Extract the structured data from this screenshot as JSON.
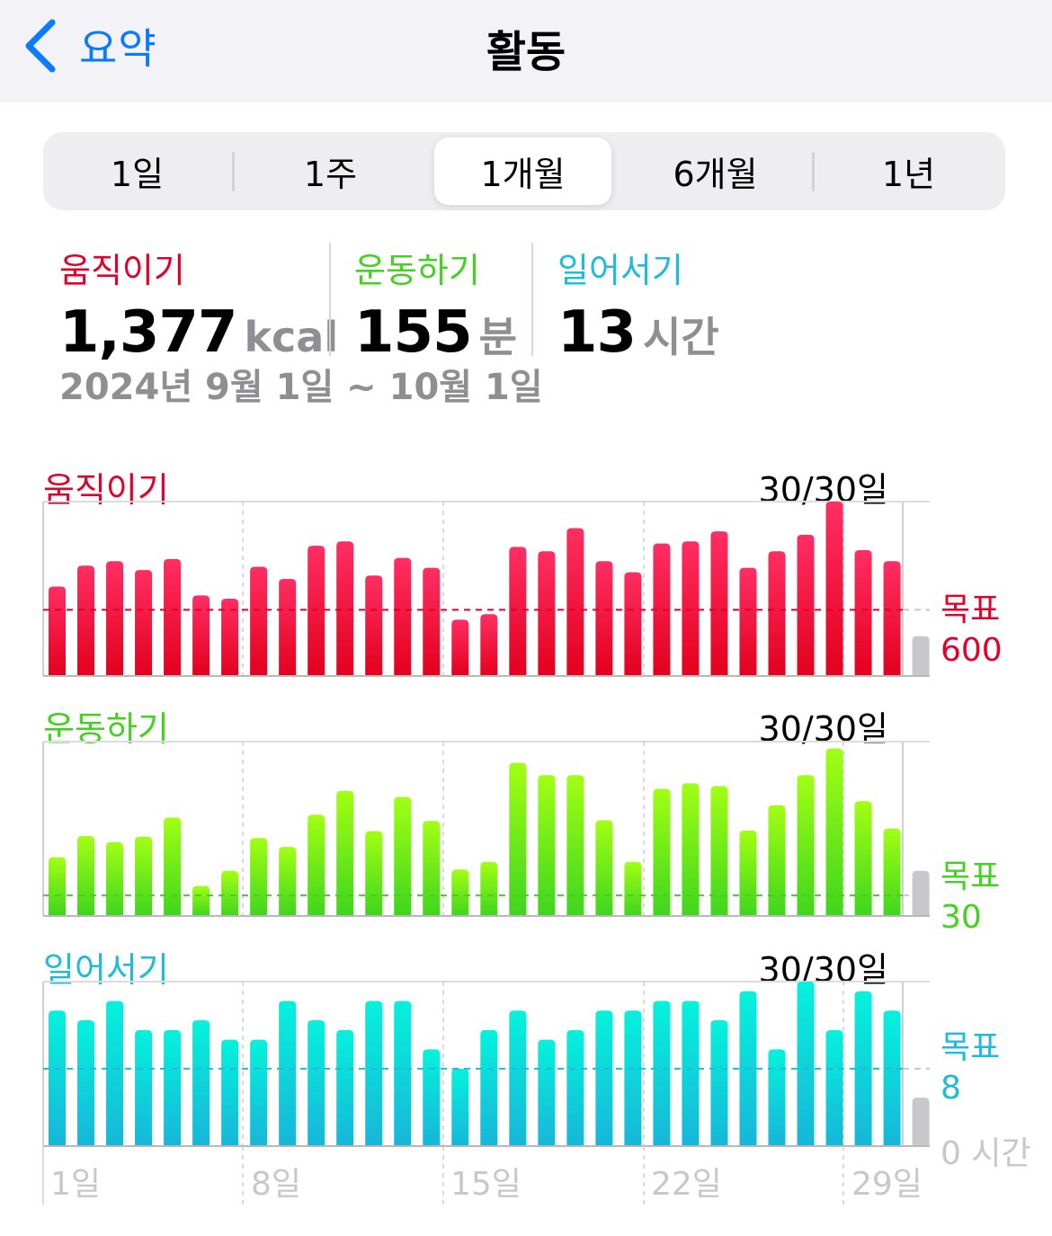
{
  "nav": {
    "back_label": "요약",
    "title": "활동"
  },
  "segments": [
    {
      "label": "1일",
      "selected": false
    },
    {
      "label": "1주",
      "selected": false
    },
    {
      "label": "1개월",
      "selected": true
    },
    {
      "label": "6개월",
      "selected": false
    },
    {
      "label": "1년",
      "selected": false
    }
  ],
  "summary": {
    "move": {
      "label": "움직이기",
      "value": "1,377",
      "unit": "kcal",
      "color": "#e3002a"
    },
    "exercise": {
      "label": "운동하기",
      "value": "155",
      "unit": "분",
      "color": "#44d11f"
    },
    "stand": {
      "label": "일어서기",
      "value": "13",
      "unit": "시간",
      "color": "#1ebcd8"
    },
    "date_range": "2024년 9월 1일 ~ 10월 1일"
  },
  "colors": {
    "move": "#e3002a",
    "exercise": "#44d11f",
    "stand": "#1ebcd8",
    "accent": "#0a7aff",
    "inactive_bar": "#c7c7cc"
  },
  "chart_data": [
    {
      "type": "bar",
      "title": "움직이기",
      "days_met": "30/30일",
      "goal_label": "목표",
      "goal_value": "600",
      "goal": 600,
      "ylim": [
        0,
        1580
      ],
      "x": [
        1,
        2,
        3,
        4,
        5,
        6,
        7,
        8,
        9,
        10,
        11,
        12,
        13,
        14,
        15,
        16,
        17,
        18,
        19,
        20,
        21,
        22,
        23,
        24,
        25,
        26,
        27,
        28,
        29,
        30,
        31
      ],
      "values": [
        810,
        1000,
        1040,
        960,
        1060,
        730,
        700,
        990,
        880,
        1180,
        1220,
        910,
        1070,
        980,
        510,
        560,
        1170,
        1130,
        1340,
        1040,
        940,
        1200,
        1220,
        1310,
        980,
        1130,
        1280,
        1580,
        1140,
        1040,
        360
      ]
    },
    {
      "type": "bar",
      "title": "운동하기",
      "days_met": "30/30일",
      "goal_label": "목표",
      "goal_value": "30",
      "goal": 30,
      "ylim": [
        0,
        255
      ],
      "x": [
        1,
        2,
        3,
        4,
        5,
        6,
        7,
        8,
        9,
        10,
        11,
        12,
        13,
        14,
        15,
        16,
        17,
        18,
        19,
        20,
        21,
        22,
        23,
        24,
        25,
        26,
        27,
        28,
        29,
        30,
        31
      ],
      "values": [
        86,
        117,
        108,
        116,
        144,
        44,
        66,
        114,
        101,
        148,
        183,
        124,
        174,
        139,
        68,
        79,
        224,
        206,
        206,
        140,
        79,
        186,
        194,
        190,
        125,
        162,
        206,
        245,
        168,
        128,
        66
      ]
    },
    {
      "type": "bar",
      "title": "일어서기",
      "days_met": "30/30일",
      "goal_label": "목표",
      "goal_value": "8",
      "goal": 8,
      "zero_label": "0 시간",
      "ylim": [
        0,
        17
      ],
      "x": [
        1,
        2,
        3,
        4,
        5,
        6,
        7,
        8,
        9,
        10,
        11,
        12,
        13,
        14,
        15,
        16,
        17,
        18,
        19,
        20,
        21,
        22,
        23,
        24,
        25,
        26,
        27,
        28,
        29,
        30,
        31
      ],
      "values": [
        14,
        13,
        15,
        12,
        12,
        13,
        11,
        11,
        15,
        13,
        12,
        15,
        15,
        10,
        8,
        12,
        14,
        11,
        12,
        14,
        14,
        15,
        15,
        13,
        16,
        10,
        17,
        12,
        16,
        14,
        5
      ],
      "x_tick_labels": [
        "1일",
        "8일",
        "15일",
        "22일",
        "29일"
      ]
    }
  ]
}
